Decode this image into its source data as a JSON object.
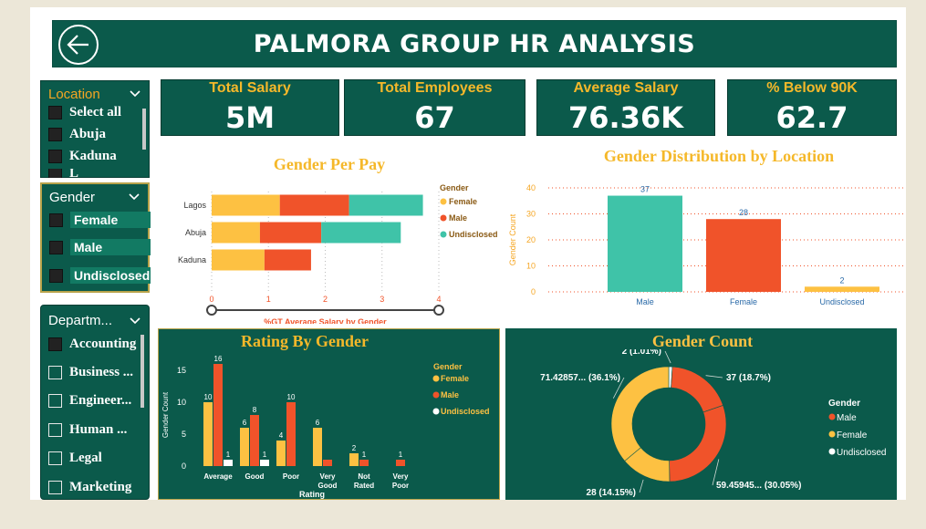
{
  "header": {
    "title": "PALMORA GROUP HR ANALYSIS",
    "back_icon": "back-arrow-icon"
  },
  "slicers": {
    "location": {
      "title": "Location",
      "items": [
        "Select all",
        "Abuja",
        "Kaduna",
        "L"
      ]
    },
    "gender": {
      "title": "Gender",
      "items": [
        "Female",
        "Male",
        "Undisclosed"
      ]
    },
    "department": {
      "title": "Departm...",
      "items": [
        "Accounting",
        "Business ...",
        "Engineer...",
        "Human ...",
        "Legal",
        "Marketing"
      ]
    }
  },
  "kpis": [
    {
      "label": "Total Salary",
      "value": "5M"
    },
    {
      "label": "Total Employees",
      "value": "67"
    },
    {
      "label": "Average Salary",
      "value": "76.36K"
    },
    {
      "label": "% Below 90K",
      "value": "62.7"
    }
  ],
  "colors": {
    "female": "#fdc142",
    "male": "#f0532a",
    "undisclosed": "#3fc3a8",
    "dark_panel": "#0b5a4b",
    "accent": "#f5b82a"
  },
  "chart_data": [
    {
      "type": "bar",
      "orientation": "horizontal-stacked",
      "title": "Gender Per Pay",
      "xlabel": "%GT Average Salary by Gender",
      "categories": [
        "Lagos",
        "Abuja",
        "Kaduna"
      ],
      "xlim": [
        0,
        4
      ],
      "xticks": [
        "0",
        "1",
        "2",
        "3",
        "4"
      ],
      "legend_title": "Gender",
      "legend": [
        "Female",
        "Male",
        "Undisclosed"
      ],
      "series": [
        {
          "name": "Female",
          "values": [
            1.2,
            0.85,
            0.93
          ]
        },
        {
          "name": "Male",
          "values": [
            1.22,
            1.08,
            0.82
          ]
        },
        {
          "name": "Undisclosed",
          "values": [
            1.3,
            1.4,
            0
          ]
        }
      ]
    },
    {
      "type": "bar",
      "title": "Gender Distribution by Location",
      "ylabel": "Gender Count",
      "categories": [
        "Male",
        "Female",
        "Undisclosed"
      ],
      "values": [
        37,
        28,
        2
      ],
      "labels": [
        "37",
        "28",
        "2"
      ],
      "ylim": [
        0,
        40
      ],
      "yticks": [
        "0",
        "10",
        "20",
        "30",
        "40"
      ]
    },
    {
      "type": "bar",
      "title": "Rating By Gender",
      "xlabel": "Rating",
      "ylabel": "Gender Count",
      "ylim": [
        0,
        16
      ],
      "yticks": [
        "0",
        "5",
        "10",
        "15"
      ],
      "categories": [
        "Average",
        "Good",
        "Poor",
        "Very Good",
        "Not Rated",
        "Very Poor"
      ],
      "legend_title": "Gender",
      "legend": [
        "Female",
        "Male",
        "Undisclosed"
      ],
      "series": [
        {
          "name": "Female",
          "values": [
            10,
            6,
            4,
            6,
            2,
            0
          ],
          "labels": [
            "10",
            "6",
            "4",
            "6",
            "2",
            ""
          ]
        },
        {
          "name": "Male",
          "values": [
            16,
            8,
            10,
            1,
            1,
            1
          ],
          "labels": [
            "16",
            "8",
            "10",
            "",
            "1",
            "1"
          ]
        },
        {
          "name": "Undisclosed",
          "values": [
            1,
            1,
            0,
            0,
            0,
            0
          ],
          "labels": [
            "1",
            "1",
            "",
            "",
            "",
            ""
          ]
        }
      ]
    },
    {
      "type": "pie",
      "style": "donut",
      "title": "Gender Count",
      "legend_title": "Gender",
      "legend": [
        "Male",
        "Female",
        "Undisclosed"
      ],
      "slices": [
        {
          "value": 2,
          "color": "#ffffff",
          "label": "2 (1.01%)"
        },
        {
          "value": 37,
          "color": "#f0532a",
          "label": "37 (18.7%)"
        },
        {
          "value": 59.46,
          "color": "#f0532a",
          "label": "59.45945... (30.05%)"
        },
        {
          "value": 28,
          "color": "#fdc142",
          "label": "28 (14.15%)"
        },
        {
          "value": 71.43,
          "color": "#fdc142",
          "label": "71.42857... (36.1%)"
        }
      ]
    }
  ]
}
